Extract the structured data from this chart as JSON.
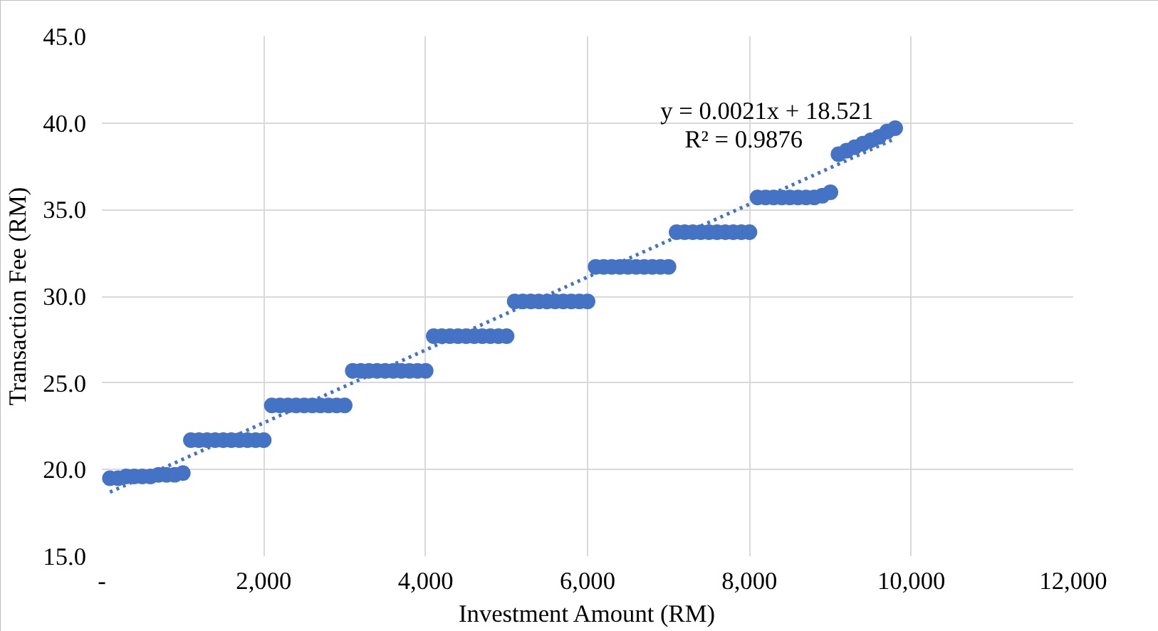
{
  "chart_data": {
    "type": "scatter",
    "xlabel": "Investment Amount (RM)",
    "ylabel": "Transaction Fee (RM)",
    "xlim": [
      0,
      12000
    ],
    "ylim": [
      15,
      45
    ],
    "xticks": [
      {
        "value": 0,
        "label": "-"
      },
      {
        "value": 2000,
        "label": "2,000"
      },
      {
        "value": 4000,
        "label": "4,000"
      },
      {
        "value": 6000,
        "label": "6,000"
      },
      {
        "value": 8000,
        "label": "8,000"
      },
      {
        "value": 10000,
        "label": "10,000"
      },
      {
        "value": 12000,
        "label": "12,000"
      }
    ],
    "yticks": [
      {
        "value": 15,
        "label": "15.0"
      },
      {
        "value": 20,
        "label": "20.0"
      },
      {
        "value": 25,
        "label": "25.0"
      },
      {
        "value": 30,
        "label": "30.0"
      },
      {
        "value": 35,
        "label": "35.0"
      },
      {
        "value": 40,
        "label": "40.0"
      },
      {
        "value": 45,
        "label": "45.0"
      }
    ],
    "grid": true,
    "annotations": [
      "y = 0.0021x + 18.521",
      "R² = 0.9876"
    ],
    "series": [
      {
        "color": "#4472c4",
        "marker": "circle",
        "x": [
          100,
          200,
          300,
          400,
          500,
          600,
          700,
          800,
          900,
          1000,
          1100,
          1200,
          1300,
          1400,
          1500,
          1600,
          1700,
          1800,
          1900,
          2000,
          2100,
          2200,
          2300,
          2400,
          2500,
          2600,
          2700,
          2800,
          2900,
          3000,
          3100,
          3200,
          3300,
          3400,
          3500,
          3600,
          3700,
          3800,
          3900,
          4000,
          4100,
          4200,
          4300,
          4400,
          4500,
          4600,
          4700,
          4800,
          4900,
          5000,
          5100,
          5200,
          5300,
          5400,
          5500,
          5600,
          5700,
          5800,
          5900,
          6000,
          6100,
          6200,
          6300,
          6400,
          6500,
          6600,
          6700,
          6800,
          6900,
          7000,
          7100,
          7200,
          7300,
          7400,
          7500,
          7600,
          7700,
          7800,
          7900,
          8000,
          8100,
          8200,
          8300,
          8400,
          8500,
          8600,
          8700,
          8800,
          8900,
          9000,
          9100,
          9200,
          9300,
          9400,
          9500,
          9600,
          9700,
          9800
        ],
        "values": [
          19.5,
          19.5,
          19.6,
          19.6,
          19.6,
          19.6,
          19.7,
          19.7,
          19.7,
          19.8,
          21.7,
          21.7,
          21.7,
          21.7,
          21.7,
          21.7,
          21.7,
          21.7,
          21.7,
          21.7,
          23.7,
          23.7,
          23.7,
          23.7,
          23.7,
          23.7,
          23.7,
          23.7,
          23.7,
          23.7,
          25.7,
          25.7,
          25.7,
          25.7,
          25.7,
          25.7,
          25.7,
          25.7,
          25.7,
          25.7,
          27.7,
          27.7,
          27.7,
          27.7,
          27.7,
          27.7,
          27.7,
          27.7,
          27.7,
          27.7,
          29.7,
          29.7,
          29.7,
          29.7,
          29.7,
          29.7,
          29.7,
          29.7,
          29.7,
          29.7,
          31.7,
          31.7,
          31.7,
          31.7,
          31.7,
          31.7,
          31.7,
          31.7,
          31.7,
          31.7,
          33.7,
          33.7,
          33.7,
          33.7,
          33.7,
          33.7,
          33.7,
          33.7,
          33.7,
          33.7,
          35.7,
          35.7,
          35.7,
          35.7,
          35.7,
          35.7,
          35.7,
          35.7,
          35.8,
          36.0,
          38.2,
          38.4,
          38.6,
          38.8,
          39.0,
          39.2,
          39.5,
          39.7
        ]
      },
      {
        "type": "line",
        "color": "#4472c4",
        "line_style": "dotted",
        "x": [
          100,
          9800
        ],
        "values": [
          18.7,
          39.1
        ]
      }
    ]
  }
}
